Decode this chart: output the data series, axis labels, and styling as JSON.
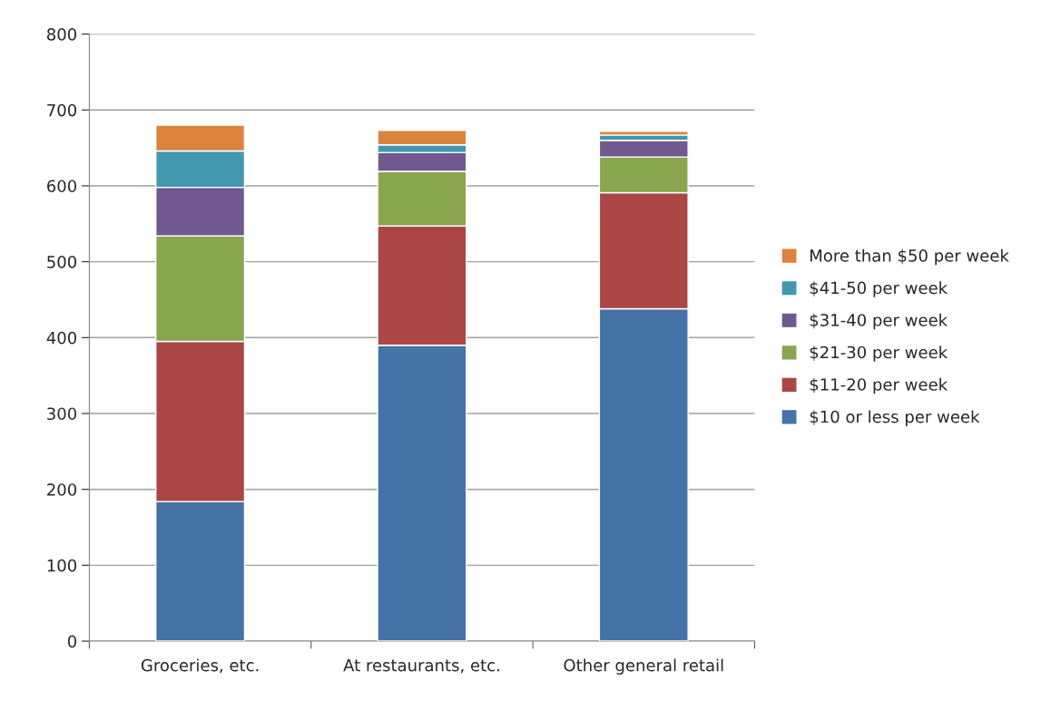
{
  "chart_data": {
    "type": "bar",
    "stacked": true,
    "categories": [
      "Groceries, etc.",
      "At restaurants, etc.",
      "Other general retail"
    ],
    "series": [
      {
        "name": "$10 or less per week",
        "color": "#4572a7",
        "values": [
          184,
          390,
          438
        ]
      },
      {
        "name": "$11-20 per week",
        "color": "#aa4643",
        "values": [
          211,
          157,
          153
        ]
      },
      {
        "name": "$21-30 per week",
        "color": "#89a54e",
        "values": [
          139,
          72,
          47
        ]
      },
      {
        "name": "$31-40 per week",
        "color": "#71588f",
        "values": [
          64,
          25,
          22
        ]
      },
      {
        "name": "$41-50 per week",
        "color": "#4198af",
        "values": [
          48,
          10,
          7
        ]
      },
      {
        "name": "More than $50 per week",
        "color": "#db843d",
        "values": [
          34,
          19,
          5
        ]
      }
    ],
    "ylim": [
      0,
      800
    ],
    "yticks": [
      0,
      100,
      200,
      300,
      400,
      500,
      600,
      700,
      800
    ],
    "grid": "y",
    "legend": "right"
  }
}
